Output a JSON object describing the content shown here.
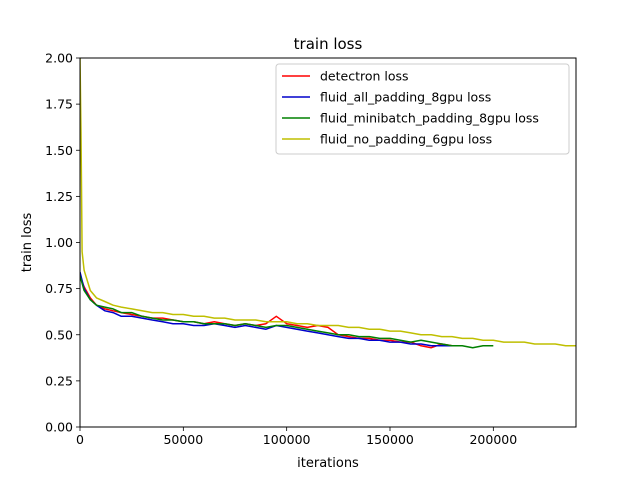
{
  "chart_data": {
    "type": "line",
    "title": "train loss",
    "xlabel": "iterations",
    "ylabel": "train loss",
    "xlim": [
      0,
      240000
    ],
    "ylim": [
      0.0,
      2.0
    ],
    "xticks": [
      0,
      50000,
      100000,
      150000,
      200000
    ],
    "xtick_labels": [
      "0",
      "50000",
      "100000",
      "150000",
      "200000"
    ],
    "yticks": [
      0.0,
      0.25,
      0.5,
      0.75,
      1.0,
      1.25,
      1.5,
      1.75,
      2.0
    ],
    "ytick_labels": [
      "0.00",
      "0.25",
      "0.50",
      "0.75",
      "1.00",
      "1.25",
      "1.50",
      "1.75",
      "2.00"
    ],
    "grid": false,
    "legend_position": "top-right",
    "series": [
      {
        "name": "detectron loss",
        "color": "#ff0000",
        "x": [
          0,
          2000,
          5000,
          8000,
          12000,
          16000,
          20000,
          25000,
          30000,
          35000,
          40000,
          45000,
          50000,
          55000,
          60000,
          65000,
          70000,
          75000,
          80000,
          85000,
          90000,
          95000,
          100000,
          105000,
          110000,
          115000,
          120000,
          125000,
          130000,
          135000,
          140000,
          145000,
          150000,
          155000,
          160000,
          165000,
          170000,
          175000,
          180000
        ],
        "y": [
          0.82,
          0.76,
          0.7,
          0.66,
          0.64,
          0.63,
          0.62,
          0.61,
          0.6,
          0.59,
          0.59,
          0.58,
          0.57,
          0.57,
          0.56,
          0.57,
          0.56,
          0.55,
          0.56,
          0.55,
          0.56,
          0.6,
          0.56,
          0.55,
          0.54,
          0.55,
          0.54,
          0.5,
          0.49,
          0.48,
          0.48,
          0.47,
          0.47,
          0.46,
          0.46,
          0.44,
          0.43,
          0.45,
          0.44
        ]
      },
      {
        "name": "fluid_all_padding_8gpu loss",
        "color": "#0000cc",
        "x": [
          0,
          2000,
          5000,
          8000,
          12000,
          16000,
          20000,
          25000,
          30000,
          35000,
          40000,
          45000,
          50000,
          55000,
          60000,
          65000,
          70000,
          75000,
          80000,
          85000,
          90000,
          95000,
          100000,
          105000,
          110000,
          115000,
          120000,
          125000,
          130000,
          135000,
          140000,
          145000,
          150000,
          155000,
          160000,
          165000,
          170000,
          175000,
          180000
        ],
        "y": [
          0.84,
          0.75,
          0.69,
          0.66,
          0.63,
          0.62,
          0.6,
          0.6,
          0.59,
          0.58,
          0.57,
          0.56,
          0.56,
          0.55,
          0.55,
          0.56,
          0.55,
          0.54,
          0.55,
          0.54,
          0.53,
          0.55,
          0.54,
          0.53,
          0.52,
          0.51,
          0.5,
          0.49,
          0.48,
          0.48,
          0.47,
          0.47,
          0.46,
          0.46,
          0.45,
          0.45,
          0.44,
          0.44,
          0.44
        ]
      },
      {
        "name": "fluid_minibatch_padding_8gpu loss",
        "color": "#008000",
        "x": [
          0,
          2000,
          5000,
          8000,
          12000,
          16000,
          20000,
          25000,
          30000,
          35000,
          40000,
          45000,
          50000,
          55000,
          60000,
          65000,
          70000,
          75000,
          80000,
          85000,
          90000,
          95000,
          100000,
          105000,
          110000,
          115000,
          120000,
          125000,
          130000,
          135000,
          140000,
          145000,
          150000,
          155000,
          160000,
          165000,
          170000,
          175000,
          180000,
          185000,
          190000,
          195000,
          200000
        ],
        "y": [
          0.82,
          0.74,
          0.69,
          0.66,
          0.65,
          0.64,
          0.62,
          0.62,
          0.6,
          0.59,
          0.58,
          0.58,
          0.57,
          0.57,
          0.56,
          0.56,
          0.56,
          0.55,
          0.56,
          0.55,
          0.54,
          0.55,
          0.55,
          0.54,
          0.53,
          0.52,
          0.51,
          0.5,
          0.5,
          0.49,
          0.49,
          0.48,
          0.48,
          0.47,
          0.46,
          0.47,
          0.46,
          0.45,
          0.44,
          0.44,
          0.43,
          0.44,
          0.44
        ]
      },
      {
        "name": "fluid_no_padding_6gpu loss",
        "color": "#bfbf00",
        "x": [
          0,
          500,
          1000,
          2000,
          5000,
          8000,
          12000,
          16000,
          20000,
          25000,
          30000,
          35000,
          40000,
          45000,
          50000,
          55000,
          60000,
          65000,
          70000,
          75000,
          80000,
          85000,
          90000,
          95000,
          100000,
          105000,
          110000,
          115000,
          120000,
          125000,
          130000,
          135000,
          140000,
          145000,
          150000,
          155000,
          160000,
          165000,
          170000,
          175000,
          180000,
          185000,
          190000,
          195000,
          200000,
          205000,
          210000,
          215000,
          220000,
          225000,
          230000,
          235000,
          240000
        ],
        "y": [
          2.0,
          1.6,
          0.95,
          0.85,
          0.74,
          0.7,
          0.68,
          0.66,
          0.65,
          0.64,
          0.63,
          0.62,
          0.62,
          0.61,
          0.61,
          0.6,
          0.6,
          0.59,
          0.59,
          0.58,
          0.58,
          0.58,
          0.57,
          0.57,
          0.57,
          0.56,
          0.56,
          0.55,
          0.55,
          0.55,
          0.54,
          0.54,
          0.53,
          0.53,
          0.52,
          0.52,
          0.51,
          0.5,
          0.5,
          0.49,
          0.49,
          0.48,
          0.48,
          0.47,
          0.47,
          0.46,
          0.46,
          0.46,
          0.45,
          0.45,
          0.45,
          0.44,
          0.44
        ]
      }
    ]
  }
}
